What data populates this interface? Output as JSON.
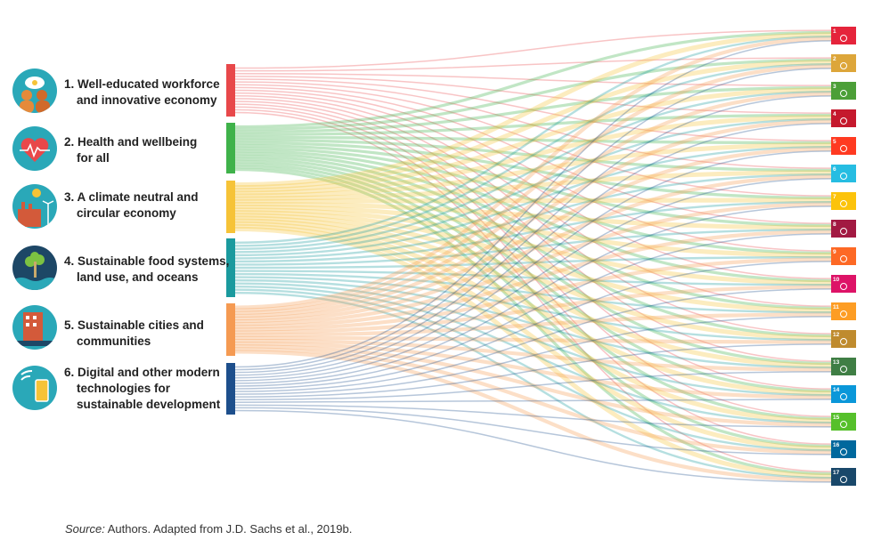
{
  "transformations": [
    {
      "num": "1.",
      "line1": "Well-educated workforce",
      "line2": "and innovative economy",
      "line3": "",
      "color": "#e8484a",
      "icon": "education-icon"
    },
    {
      "num": "2.",
      "line1": "Health and wellbeing",
      "line2": "for all",
      "line3": "",
      "color": "#3fb24a",
      "icon": "heart-pulse-icon"
    },
    {
      "num": "3.",
      "line1": "A climate neutral and",
      "line2": "circular economy",
      "line3": "",
      "color": "#f6c337",
      "icon": "factory-icon"
    },
    {
      "num": "4.",
      "line1": "Sustainable food systems,",
      "line2": "land use, and oceans",
      "line3": "",
      "color": "#1a9a9e",
      "icon": "tree-icon"
    },
    {
      "num": "5.",
      "line1": "Sustainable cities and",
      "line2": "communities",
      "line3": "",
      "color": "#f59a52",
      "icon": "city-icon"
    },
    {
      "num": "6.",
      "line1": "Digital and other modern",
      "line2": "technologies for",
      "line3": "sustainable development",
      "color": "#1d4f8c",
      "icon": "smartphone-icon"
    }
  ],
  "sdgs": [
    {
      "num": "1",
      "color": "#e5243b",
      "icon": "people-icon"
    },
    {
      "num": "2",
      "color": "#dda63a",
      "icon": "bowl-icon"
    },
    {
      "num": "3",
      "color": "#4c9f38",
      "icon": "heartbeat-icon"
    },
    {
      "num": "4",
      "color": "#c5192d",
      "icon": "book-icon"
    },
    {
      "num": "5",
      "color": "#ff3a21",
      "icon": "gender-icon"
    },
    {
      "num": "6",
      "color": "#26bde2",
      "icon": "water-drop-icon"
    },
    {
      "num": "7",
      "color": "#fcc30b",
      "icon": "sun-icon"
    },
    {
      "num": "8",
      "color": "#a21942",
      "icon": "growth-chart-icon"
    },
    {
      "num": "9",
      "color": "#fd6925",
      "icon": "cubes-icon"
    },
    {
      "num": "10",
      "color": "#dd1367",
      "icon": "equality-icon"
    },
    {
      "num": "11",
      "color": "#fd9d24",
      "icon": "buildings-icon"
    },
    {
      "num": "12",
      "color": "#bf8b2e",
      "icon": "infinity-icon"
    },
    {
      "num": "13",
      "color": "#3f7e44",
      "icon": "eye-icon"
    },
    {
      "num": "14",
      "color": "#0a97d9",
      "icon": "fish-icon"
    },
    {
      "num": "15",
      "color": "#56c02b",
      "icon": "bird-tree-icon"
    },
    {
      "num": "16",
      "color": "#00689d",
      "icon": "dove-icon"
    },
    {
      "num": "17",
      "color": "#19486a",
      "icon": "partnership-wheel-icon"
    }
  ],
  "source": {
    "label": "Source:",
    "text": " Authors. Adapted from J.D. Sachs et al., 2019b."
  }
}
